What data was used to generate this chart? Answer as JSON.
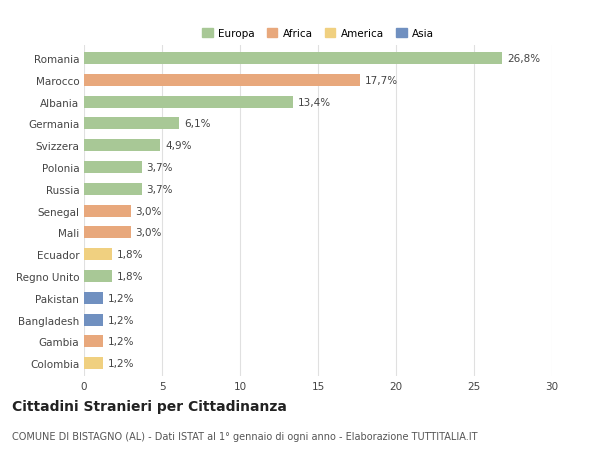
{
  "categories": [
    "Romania",
    "Marocco",
    "Albania",
    "Germania",
    "Svizzera",
    "Polonia",
    "Russia",
    "Senegal",
    "Mali",
    "Ecuador",
    "Regno Unito",
    "Pakistan",
    "Bangladesh",
    "Gambia",
    "Colombia"
  ],
  "values": [
    26.8,
    17.7,
    13.4,
    6.1,
    4.9,
    3.7,
    3.7,
    3.0,
    3.0,
    1.8,
    1.8,
    1.2,
    1.2,
    1.2,
    1.2
  ],
  "labels": [
    "26,8%",
    "17,7%",
    "13,4%",
    "6,1%",
    "4,9%",
    "3,7%",
    "3,7%",
    "3,0%",
    "3,0%",
    "1,8%",
    "1,8%",
    "1,2%",
    "1,2%",
    "1,2%",
    "1,2%"
  ],
  "colors": [
    "#a8c896",
    "#e8a87c",
    "#a8c896",
    "#a8c896",
    "#a8c896",
    "#a8c896",
    "#a8c896",
    "#e8a87c",
    "#e8a87c",
    "#f0d080",
    "#a8c896",
    "#7090c0",
    "#7090c0",
    "#e8a87c",
    "#f0d080"
  ],
  "legend_labels": [
    "Europa",
    "Africa",
    "America",
    "Asia"
  ],
  "legend_colors": [
    "#a8c896",
    "#e8a87c",
    "#f0d080",
    "#7090c0"
  ],
  "title": "Cittadini Stranieri per Cittadinanza",
  "subtitle": "COMUNE DI BISTAGNO (AL) - Dati ISTAT al 1° gennaio di ogni anno - Elaborazione TUTTITALIA.IT",
  "xlim": [
    0,
    30
  ],
  "xticks": [
    0,
    5,
    10,
    15,
    20,
    25,
    30
  ],
  "bg_color": "#ffffff",
  "grid_color": "#e0e0e0",
  "bar_height": 0.55,
  "label_fontsize": 7.5,
  "tick_fontsize": 7.5,
  "title_fontsize": 10,
  "subtitle_fontsize": 7
}
